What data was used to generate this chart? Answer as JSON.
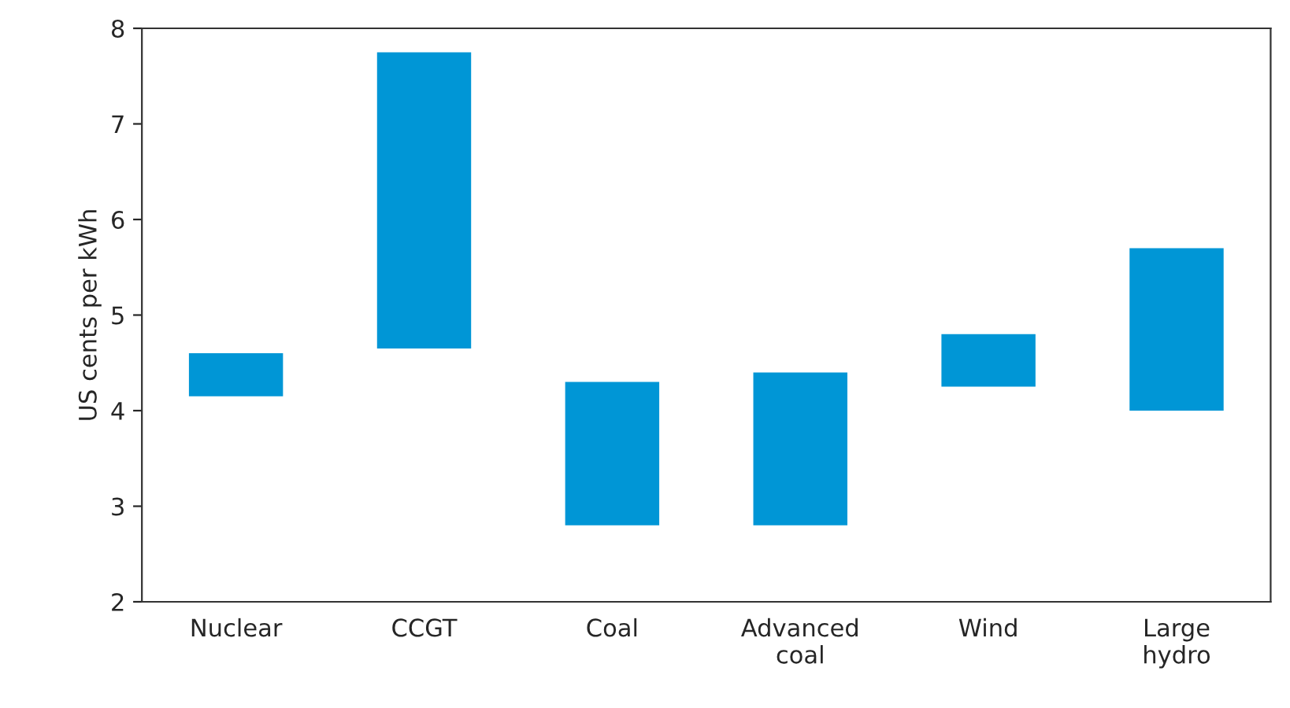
{
  "chart_data": {
    "type": "bar",
    "ylabel": "US cents per kWh",
    "categories": [
      "Nuclear",
      "CCGT",
      "Coal",
      "Advanced\ncoal",
      "Wind",
      "Large\nhydro"
    ],
    "base": [
      4.15,
      4.65,
      2.8,
      2.8,
      4.25,
      4.0
    ],
    "values": [
      0.45,
      3.1,
      1.5,
      1.6,
      0.55,
      1.7
    ],
    "color": "#0096d6",
    "ylim": [
      2,
      8
    ],
    "yticks": [
      2,
      3,
      4,
      5,
      6,
      7,
      8
    ],
    "grid": false
  }
}
